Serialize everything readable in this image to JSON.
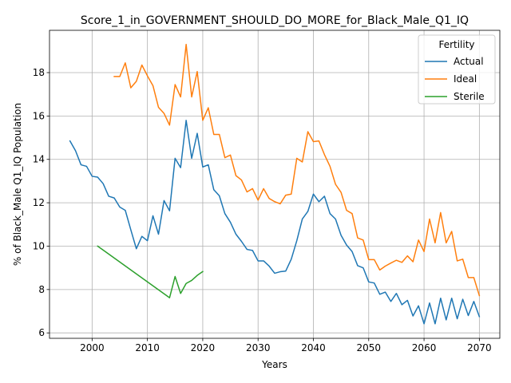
{
  "chart_data": {
    "type": "line",
    "title": "Score_1_in_GOVERNMENT_SHOULD_DO_MORE_for_Black_Male_Q1_IQ",
    "xlabel": "Years",
    "ylabel": "% of Black_Male Q1_IQ Population",
    "xlim": [
      1992.3,
      2073.7
    ],
    "ylim": [
      5.75,
      19.95
    ],
    "xticks": [
      2000,
      2010,
      2020,
      2030,
      2040,
      2050,
      2060,
      2070
    ],
    "yticks": [
      6,
      8,
      10,
      12,
      14,
      16,
      18
    ],
    "grid": true,
    "legend": {
      "title": "Fertility",
      "placement": "top-right"
    },
    "series": [
      {
        "name": "Actual",
        "color": "#1f77b4",
        "x": [
          1996,
          1997,
          1998,
          1999,
          2000,
          2001,
          2002,
          2003,
          2004,
          2005,
          2006,
          2007,
          2008,
          2009,
          2010,
          2011,
          2012,
          2013,
          2014,
          2015,
          2016,
          2017,
          2018,
          2019,
          2020,
          2021,
          2022,
          2023,
          2024,
          2025,
          2026,
          2027,
          2028,
          2029,
          2030,
          2031,
          2032,
          2033,
          2034,
          2035,
          2036,
          2037,
          2038,
          2039,
          2040,
          2041,
          2042,
          2043,
          2044,
          2045,
          2046,
          2047,
          2048,
          2049,
          2050,
          2051,
          2052,
          2053,
          2054,
          2055,
          2056,
          2057,
          2058,
          2059,
          2060,
          2061,
          2062,
          2063,
          2064,
          2065,
          2066,
          2067,
          2068,
          2069,
          2070
        ],
        "y": [
          14.85,
          14.4,
          13.75,
          13.68,
          13.22,
          13.18,
          12.88,
          12.3,
          12.22,
          11.8,
          11.65,
          10.75,
          9.88,
          10.45,
          10.25,
          11.4,
          10.55,
          12.1,
          11.63,
          14.05,
          13.62,
          15.8,
          14.05,
          15.2,
          13.65,
          13.75,
          12.6,
          12.32,
          11.5,
          11.1,
          10.55,
          10.22,
          9.85,
          9.8,
          9.32,
          9.32,
          9.08,
          8.75,
          8.82,
          8.85,
          9.4,
          10.25,
          11.25,
          11.6,
          12.4,
          12.05,
          12.3,
          11.5,
          11.25,
          10.5,
          10.05,
          9.75,
          9.1,
          9.0,
          8.35,
          8.3,
          7.78,
          7.88,
          7.45,
          7.82,
          7.3,
          7.5,
          6.78,
          7.25,
          6.42,
          7.38,
          6.42,
          7.6,
          6.6,
          7.6,
          6.65,
          7.55,
          6.8,
          7.45,
          6.75
        ]
      },
      {
        "name": "Ideal",
        "color": "#ff7f0e",
        "x": [
          2004,
          2005,
          2006,
          2007,
          2008,
          2009,
          2010,
          2011,
          2012,
          2013,
          2014,
          2015,
          2016,
          2017,
          2018,
          2019,
          2020,
          2021,
          2022,
          2023,
          2024,
          2025,
          2026,
          2027,
          2028,
          2029,
          2030,
          2031,
          2032,
          2033,
          2034,
          2035,
          2036,
          2037,
          2038,
          2039,
          2040,
          2041,
          2042,
          2043,
          2044,
          2045,
          2046,
          2047,
          2048,
          2049,
          2050,
          2051,
          2052,
          2053,
          2054,
          2055,
          2056,
          2057,
          2058,
          2059,
          2060,
          2061,
          2062,
          2063,
          2064,
          2065,
          2066,
          2067,
          2068,
          2069,
          2070
        ],
        "y": [
          17.82,
          17.82,
          18.45,
          17.3,
          17.6,
          18.35,
          17.85,
          17.4,
          16.4,
          16.12,
          15.58,
          17.45,
          16.88,
          19.3,
          16.88,
          18.05,
          15.8,
          16.38,
          15.15,
          15.15,
          14.08,
          14.2,
          13.25,
          13.05,
          12.5,
          12.65,
          12.12,
          12.65,
          12.2,
          12.05,
          11.95,
          12.35,
          12.4,
          14.05,
          13.88,
          15.28,
          14.82,
          14.85,
          14.22,
          13.68,
          12.85,
          12.48,
          11.65,
          11.5,
          10.38,
          10.28,
          9.38,
          9.38,
          8.9,
          9.08,
          9.22,
          9.35,
          9.25,
          9.55,
          9.28,
          10.28,
          9.75,
          11.25,
          10.15,
          11.55,
          10.15,
          10.68,
          9.32,
          9.4,
          8.55,
          8.55,
          7.72
        ]
      },
      {
        "name": "Sterile",
        "color": "#2ca02c",
        "x": [
          2001,
          2014,
          2015,
          2016,
          2017,
          2018,
          2019,
          2020
        ],
        "y": [
          10.0,
          7.62,
          8.6,
          7.82,
          8.28,
          8.42,
          8.65,
          8.83
        ]
      }
    ]
  }
}
